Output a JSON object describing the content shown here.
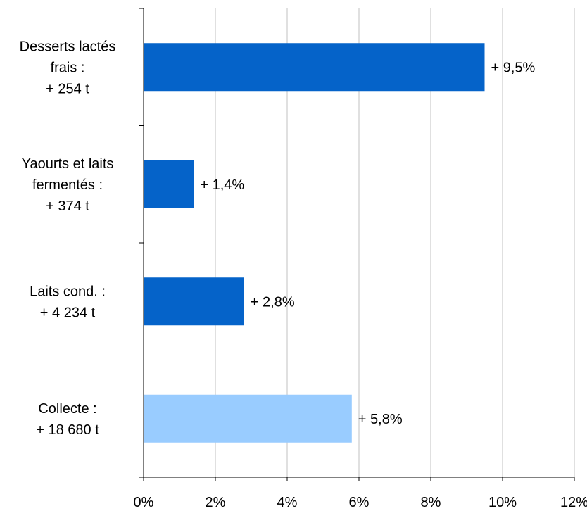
{
  "chart_data": {
    "type": "bar",
    "orientation": "horizontal",
    "categories": [
      [
        "Desserts lactés",
        "frais :",
        "+ 254 t"
      ],
      [
        "Yaourts et laits",
        "fermentés :",
        "+ 374 t"
      ],
      [
        "Laits cond. :",
        "+ 4 234 t"
      ],
      [
        "Collecte :",
        "+ 18 680 t"
      ]
    ],
    "values": [
      9.5,
      1.4,
      2.8,
      5.8
    ],
    "data_labels": [
      "+ 9,5%",
      "+ 1,4%",
      "+ 2,8%",
      "+ 5,8%"
    ],
    "bar_colors": [
      "#0563c9",
      "#0563c9",
      "#0563c9",
      "#99ccff"
    ],
    "xlim": [
      0,
      12
    ],
    "x_ticks": [
      0,
      2,
      4,
      6,
      8,
      10,
      12
    ],
    "x_tick_labels": [
      "0%",
      "2%",
      "4%",
      "6%",
      "8%",
      "10%",
      "12%"
    ],
    "grid": "vertical",
    "gridline_color": "#c0c0c0",
    "legend": "none"
  }
}
